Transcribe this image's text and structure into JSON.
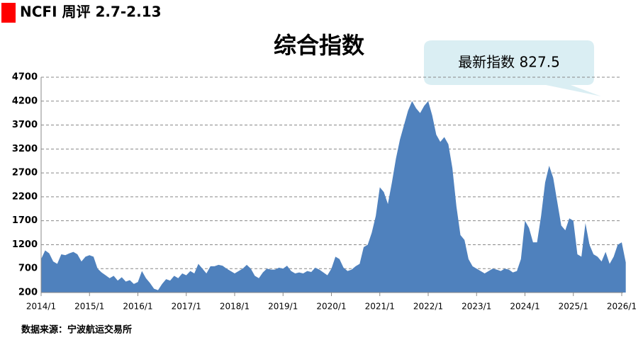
{
  "header": "NCFI 周评 2.7-2.13",
  "callout": "最新指数 827.5",
  "source": "数据来源：宁波航运交易所",
  "chart_data": {
    "type": "area",
    "title": "综合指数",
    "color": "#4f81bd",
    "grid": true,
    "ylim": [
      200,
      4700
    ],
    "yticks": [
      200,
      700,
      1200,
      1700,
      2200,
      2700,
      3200,
      3700,
      4200,
      4700
    ],
    "categories": [
      "2014/1",
      null,
      null,
      null,
      null,
      null,
      null,
      null,
      null,
      null,
      null,
      null,
      "2015/1",
      null,
      null,
      null,
      null,
      null,
      null,
      null,
      null,
      null,
      null,
      null,
      "2016/1",
      null,
      null,
      null,
      null,
      null,
      null,
      null,
      null,
      null,
      null,
      null,
      "2017/1",
      null,
      null,
      null,
      null,
      null,
      null,
      null,
      null,
      null,
      null,
      null,
      "2018/1",
      null,
      null,
      null,
      null,
      null,
      null,
      null,
      null,
      null,
      null,
      null,
      "2019/1",
      null,
      null,
      null,
      null,
      null,
      null,
      null,
      null,
      null,
      null,
      null,
      "2020/1",
      null,
      null,
      null,
      null,
      null,
      null,
      null,
      null,
      null,
      null,
      null,
      "2021/1",
      null,
      null,
      null,
      null,
      null,
      null,
      null,
      null,
      null,
      null,
      null,
      "2022/1",
      null,
      null,
      null,
      null,
      null,
      null,
      null,
      null,
      null,
      null,
      null,
      "2023/1",
      null,
      null,
      null,
      null,
      null,
      null,
      null,
      null,
      null,
      null,
      null,
      "2024/1",
      null,
      null,
      null,
      null,
      null,
      null,
      null,
      null,
      null,
      null,
      null,
      "2025/1",
      null,
      null,
      null,
      null,
      null,
      null,
      null,
      null,
      null,
      null,
      null,
      "2026/1",
      null
    ],
    "values": [
      900,
      1080,
      1020,
      850,
      800,
      1000,
      980,
      1020,
      1050,
      1000,
      850,
      950,
      980,
      950,
      700,
      620,
      560,
      500,
      550,
      450,
      520,
      430,
      460,
      380,
      420,
      650,
      500,
      400,
      280,
      250,
      380,
      480,
      450,
      550,
      500,
      600,
      560,
      650,
      600,
      800,
      700,
      600,
      750,
      750,
      780,
      760,
      700,
      650,
      600,
      650,
      700,
      780,
      700,
      550,
      500,
      620,
      700,
      680,
      680,
      720,
      700,
      760,
      650,
      600,
      620,
      600,
      650,
      630,
      720,
      680,
      620,
      560,
      700,
      950,
      900,
      720,
      650,
      680,
      750,
      800,
      1150,
      1200,
      1450,
      1800,
      2400,
      2300,
      2050,
      2500,
      3000,
      3400,
      3700,
      4000,
      4200,
      4050,
      3950,
      4100,
      4200,
      3900,
      3500,
      3350,
      3450,
      3300,
      2800,
      2000,
      1400,
      1300,
      900,
      750,
      700,
      650,
      600,
      650,
      700,
      680,
      650,
      700,
      680,
      620,
      650,
      900,
      1700,
      1550,
      1250,
      1250,
      1800,
      2500,
      2850,
      2600,
      2100,
      1600,
      1500,
      1750,
      1700,
      1000,
      950,
      1650,
      1200,
      1000,
      950,
      850,
      1050,
      800,
      950,
      1200,
      1250,
      830
    ]
  }
}
